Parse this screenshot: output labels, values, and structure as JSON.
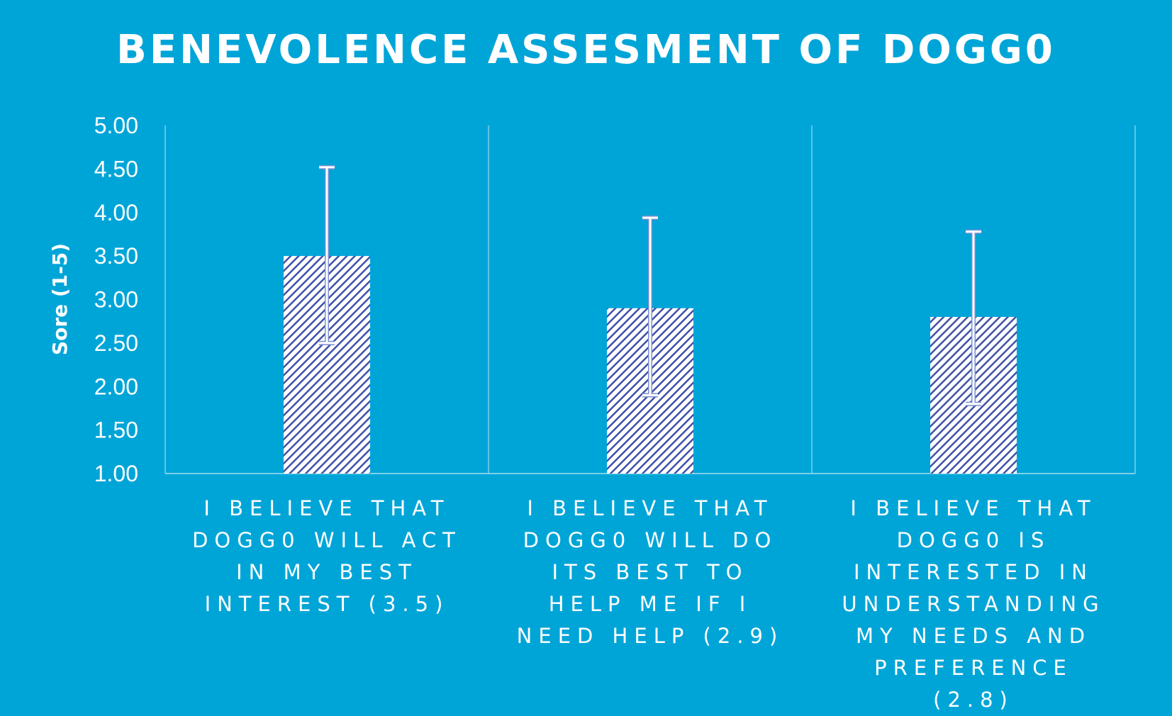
{
  "chart_data": {
    "type": "bar",
    "title": "BENEVOLENCE ASSESMENT OF DOGG0",
    "ylabel": "Sore (1-5)",
    "xlabel": "",
    "ylim": [
      1,
      5
    ],
    "yticks": [
      "1.00",
      "1.50",
      "2.00",
      "2.50",
      "3.00",
      "3.50",
      "4.00",
      "4.50",
      "5.00"
    ],
    "categories": [
      "I BELIEVE THAT DOGG0 WILL ACT IN MY BEST INTEREST (3.5)",
      "I BELIEVE THAT DOGG0 WILL DO ITS BEST TO HELP ME IF I NEED HELP (2.9)",
      "I BELIEVE THAT DOGG0 IS INTERESTED IN UNDERSTANDING MY NEEDS AND PREFERENCE (2.8)"
    ],
    "values": [
      3.5,
      2.9,
      2.8
    ],
    "error_bars": [
      {
        "low": 2.5,
        "high": 4.52
      },
      {
        "low": 1.9,
        "high": 3.94
      },
      {
        "low": 1.8,
        "high": 3.78
      }
    ],
    "grid": "vertical category separators",
    "legend": "none",
    "colors": {
      "background": "#00a5d8",
      "bar_pattern": "#3f51a8",
      "bar_fill": "#ffffff",
      "text": "#ffffff",
      "gridline": "#7fd0ec",
      "error_bar_outline": "#7a8fd0"
    }
  }
}
